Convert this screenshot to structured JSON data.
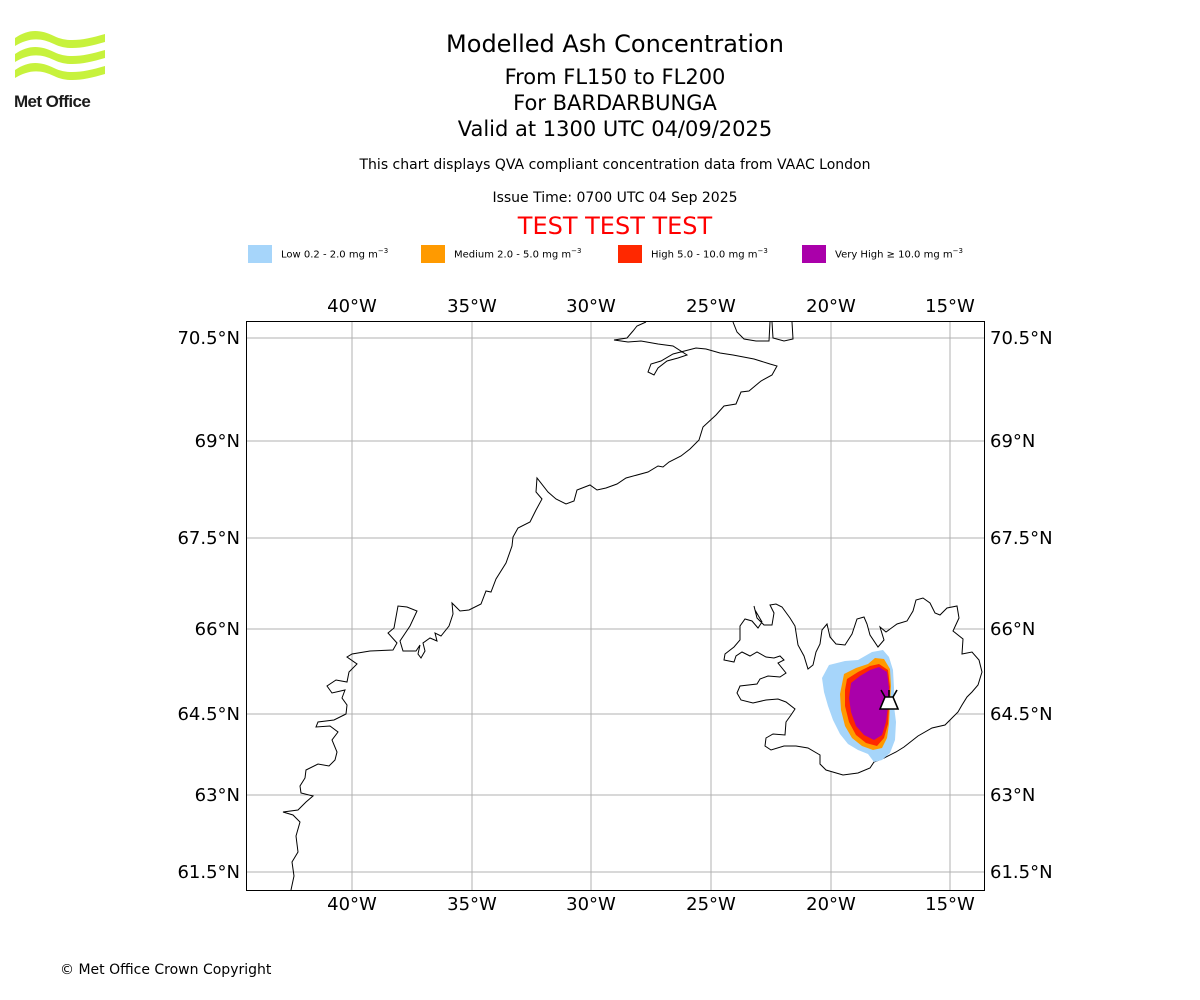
{
  "logo": {
    "text": "Met Office"
  },
  "header": {
    "title": "Modelled Ash Concentration",
    "subtitle_lines": [
      "From FL150 to FL200",
      "For BARDARBUNGA",
      "Valid at 1300 UTC 04/09/2025"
    ],
    "note": "This chart displays QVA compliant concentration data from VAAC London",
    "issue_time": "Issue Time: 0700 UTC 04 Sep 2025",
    "test_banner": "TEST TEST TEST"
  },
  "legend": [
    {
      "label": "Low 0.2 - 2.0 mg m",
      "exp": "−3",
      "color": "#a6d5fa"
    },
    {
      "label": "Medium 2.0 - 5.0 mg m",
      "exp": "−3",
      "color": "#ff9a00"
    },
    {
      "label": "High 5.0 - 10.0 mg m",
      "exp": "−3",
      "color": "#ff2800"
    },
    {
      "label": "Very High ≥ 10.0 mg m",
      "exp": "−3",
      "color": "#aa00aa"
    }
  ],
  "map": {
    "lon_ticks": [
      "40°W",
      "35°W",
      "30°W",
      "25°W",
      "20°W",
      "15°W"
    ],
    "lat_ticks": [
      "70.5°N",
      "69°N",
      "67.5°N",
      "66°N",
      "64.5°N",
      "63°N",
      "61.5°N"
    ],
    "volcano_icon": "volcano-icon",
    "grid": true
  },
  "footer": {
    "copyright": "© Met Office Crown Copyright"
  }
}
